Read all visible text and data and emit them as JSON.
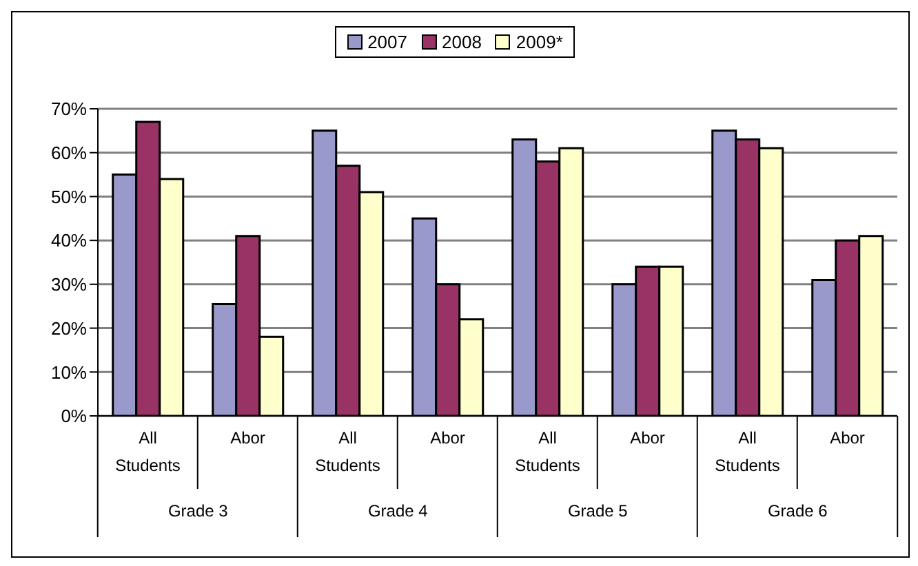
{
  "chart_data": {
    "type": "bar",
    "categories": [
      "All Students",
      "Abor",
      "All Students",
      "Abor",
      "All Students",
      "Abor",
      "All Students",
      "Abor"
    ],
    "annotations": [
      "Grade 3",
      "Grade 4",
      "Grade 5",
      "Grade 6"
    ],
    "series": [
      {
        "name": "2007",
        "color": "#9999cc",
        "values": [
          55,
          25.5,
          65,
          45,
          63,
          30,
          65,
          31
        ]
      },
      {
        "name": "2008",
        "color": "#993366",
        "values": [
          67,
          41,
          57,
          30,
          58,
          34,
          63,
          40
        ]
      },
      {
        "name": "2009*",
        "color": "#ffffcc",
        "values": [
          54,
          18,
          51,
          22,
          61,
          34,
          61,
          41
        ]
      }
    ],
    "ylim": [
      0,
      70
    ],
    "yticks": [
      {
        "value": 0,
        "label": "0%"
      },
      {
        "value": 10,
        "label": "10%"
      },
      {
        "value": 20,
        "label": "20%"
      },
      {
        "value": 30,
        "label": "30%"
      },
      {
        "value": 40,
        "label": "40%"
      },
      {
        "value": 50,
        "label": "50%"
      },
      {
        "value": 60,
        "label": "60%"
      },
      {
        "value": 70,
        "label": "70%"
      }
    ],
    "grid": "y",
    "legend": "top"
  }
}
